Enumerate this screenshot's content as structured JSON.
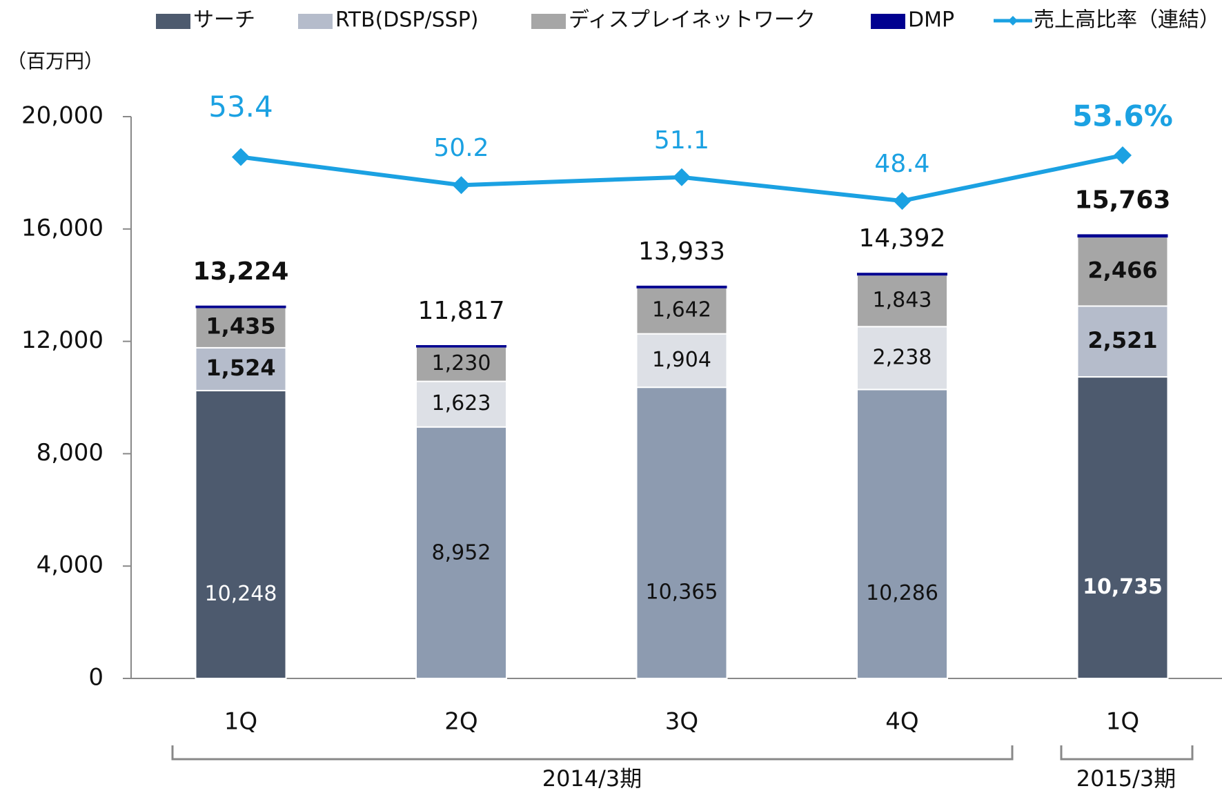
{
  "chart_data": {
    "type": "stacked_bar_line",
    "y_unit_label": "（百万円）",
    "categories": [
      "1Q",
      "2Q",
      "3Q",
      "4Q",
      "1Q"
    ],
    "groups": [
      "2014/3期",
      "2015/3期"
    ],
    "ylim": [
      0,
      20000
    ],
    "yticks": [
      0,
      {
        "value": 4000,
        "label": "4,000"
      },
      {
        "value": 8000,
        "label": "8,000"
      },
      {
        "value": 12000,
        "label": "12,000"
      },
      {
        "value": 16000,
        "label": "16,000"
      },
      {
        "value": 20000,
        "label": "20,000"
      }
    ],
    "y2lim": [
      -6,
      58
    ],
    "bold": [
      true,
      false,
      false,
      false,
      true
    ],
    "series": [
      {
        "name": "サーチ",
        "color": "#4d5a6e",
        "colors": [
          "#4d5a6e",
          "#8d9bb0",
          "#8d9bb0",
          "#8d9bb0",
          "#4d5a6e"
        ],
        "values": [
          10248,
          8952,
          10365,
          10286,
          10735
        ],
        "value_labels": [
          "10,248",
          "8,952",
          "10,365",
          "10,286",
          "10,735"
        ]
      },
      {
        "name": "RTB(DSP/SSP)",
        "color": "#b5bccb",
        "colors": [
          "#b5bccb",
          "#dde0e6",
          "#dde0e6",
          "#dde0e6",
          "#b5bccb"
        ],
        "values": [
          1524,
          1623,
          1904,
          2238,
          2521
        ],
        "value_labels": [
          "1,524",
          "1,623",
          "1,904",
          "2,238",
          "2,521"
        ]
      },
      {
        "name": "ディスプレイネットワーク",
        "color": "#a6a6a6",
        "values": [
          1435,
          1230,
          1642,
          1843,
          2466
        ],
        "value_labels": [
          "1,435",
          "1,230",
          "1,642",
          "1,843",
          "2,466"
        ]
      },
      {
        "name": "DMP",
        "color": "#000090",
        "values": [
          17,
          12,
          22,
          25,
          41
        ]
      },
      {
        "name": "売上高比率（連結）",
        "color": "#1ba1e2",
        "axis": "y2",
        "values": [
          53.4,
          50.2,
          51.1,
          48.4,
          53.6
        ],
        "value_labels": [
          "53.4",
          "50.2",
          "51.1",
          "48.4",
          "53.6%"
        ]
      }
    ],
    "totals": [
      13224,
      11817,
      13933,
      14392,
      15763
    ],
    "total_labels": [
      "13,224",
      "11,817",
      "13,933",
      "14,392",
      "15,763"
    ]
  }
}
